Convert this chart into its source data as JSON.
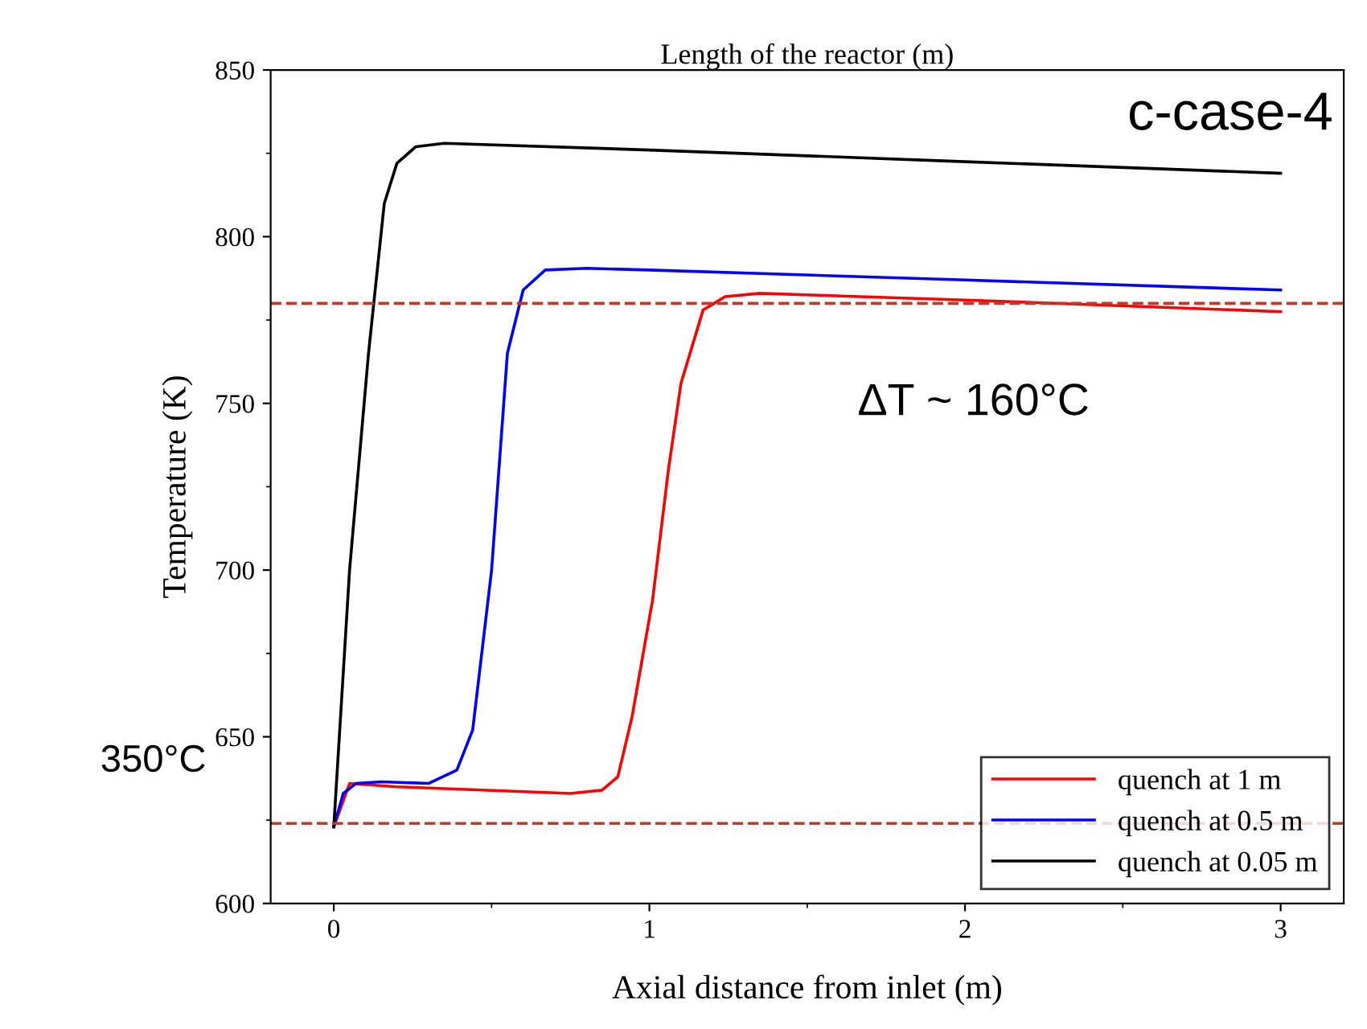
{
  "chart_data": {
    "type": "line",
    "title": "Length of the reactor (m)",
    "xlabel": "Axial distance from inlet (m)",
    "ylabel": "Temperature (K)",
    "xlim": [
      -0.2,
      3.2
    ],
    "xticks": [
      0,
      1,
      2,
      3
    ],
    "ylim": [
      600,
      850
    ],
    "yticks": [
      600,
      650,
      700,
      750,
      800,
      850
    ],
    "grid": false,
    "legend": "bottom right",
    "line_style": "solid",
    "marker": "none",
    "ref_lines": [
      {
        "axis": "y",
        "value": 780,
        "label": null,
        "color": "#c0392b",
        "line_style": "dashed"
      },
      {
        "axis": "y",
        "value": 624,
        "label": null,
        "color": "#c0392b",
        "line_style": "dashed"
      }
    ],
    "annotations": [
      "c-case-4",
      "ΔT ~ 160°C",
      "350°C"
    ],
    "series": [
      {
        "name": "quench at 1 m",
        "color": "#ff0000",
        "x": [
          0,
          0.05,
          0.2,
          0.75,
          0.85,
          0.9,
          0.945,
          1.01,
          1.06,
          1.1,
          1.17,
          1.24,
          1.35,
          2,
          3
        ],
        "values": [
          623,
          636,
          635,
          633,
          634,
          638,
          656,
          691,
          730,
          756,
          778,
          782,
          783,
          781,
          777.5
        ]
      },
      {
        "name": "quench at 0.5 m",
        "color": "#0000ff",
        "x": [
          0,
          0.03,
          0.07,
          0.15,
          0.3,
          0.39,
          0.44,
          0.5,
          0.55,
          0.6,
          0.67,
          0.8,
          1,
          2,
          3
        ],
        "values": [
          623,
          633,
          636,
          636.5,
          636,
          640,
          652,
          700,
          765,
          784,
          790,
          790.5,
          790,
          787,
          784
        ]
      },
      {
        "name": "quench at 0.05 m",
        "color": "#000000",
        "x": [
          0,
          0.05,
          0.11,
          0.16,
          0.2,
          0.26,
          0.35,
          1,
          2,
          3
        ],
        "values": [
          623,
          700,
          765,
          810,
          822,
          827,
          828,
          826,
          822.5,
          819
        ]
      }
    ]
  }
}
